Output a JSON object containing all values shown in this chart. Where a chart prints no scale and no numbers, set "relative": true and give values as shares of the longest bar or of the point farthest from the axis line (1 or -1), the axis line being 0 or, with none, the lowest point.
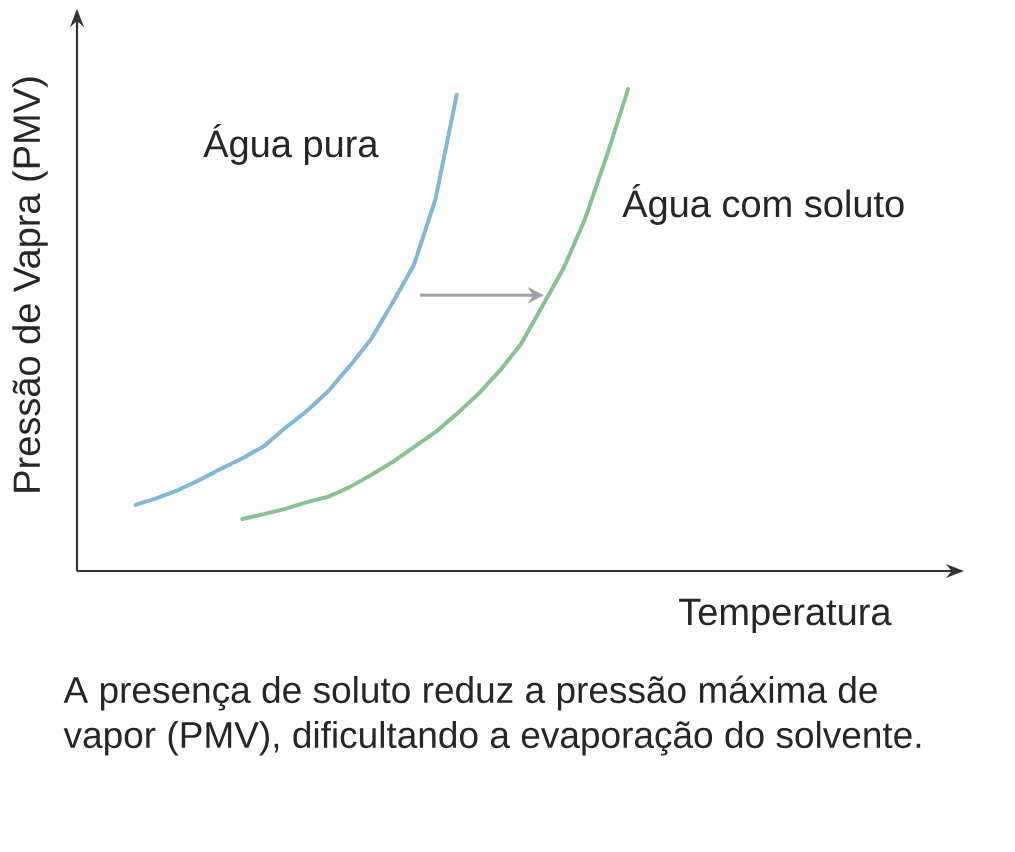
{
  "chart_data": {
    "type": "line",
    "relative": true,
    "xlabel": "Temperatura",
    "ylabel": "Pressão de Vapra (PMV)",
    "line_style": "solid",
    "annotations": [
      "A presença de soluto reduz a pressão máxima de vapor (PMV), dificultando a evaporação do solvente."
    ],
    "categories": [
      null,
      null,
      null,
      null,
      null,
      null,
      null,
      null,
      null,
      null,
      null,
      null,
      null,
      null,
      null,
      null,
      null,
      null,
      null,
      null,
      null,
      null,
      null,
      null
    ],
    "series": [
      {
        "name": "Água pura",
        "color": "#7fb8d8",
        "values": [
          0.137,
          0.151,
          0.168,
          0.189,
          0.212,
          0.234,
          0.259,
          0.297,
          0.332,
          0.373,
          0.425,
          0.481,
          0.556,
          0.635,
          0.77,
          0.988,
          null,
          null,
          null,
          null,
          null,
          null,
          null,
          null
        ]
      },
      {
        "name": "Água com soluto",
        "color": "#85c48f",
        "values": [
          null,
          null,
          null,
          null,
          null,
          0.108,
          0.118,
          0.129,
          0.143,
          0.154,
          0.174,
          0.199,
          0.226,
          0.257,
          0.288,
          0.326,
          0.367,
          0.415,
          0.471,
          0.55,
          0.629,
          0.732,
          0.861,
          1.0
        ]
      }
    ]
  }
}
